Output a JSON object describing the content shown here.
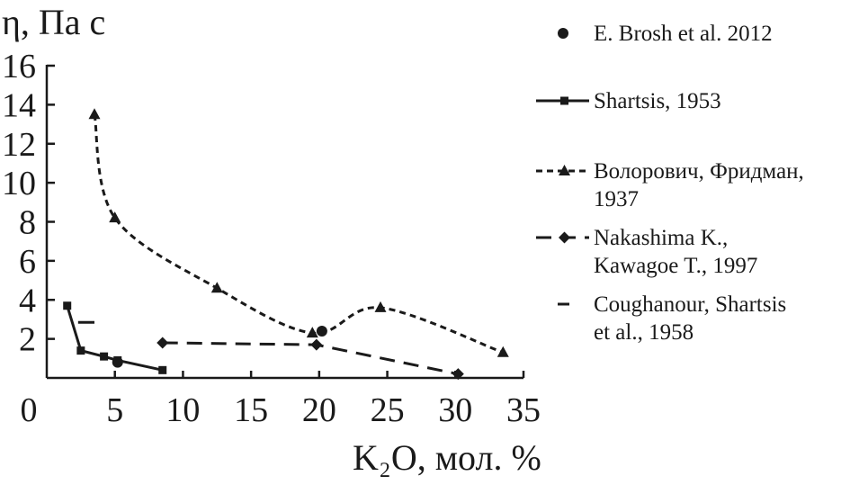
{
  "chart_data": {
    "type": "line",
    "ylabel": "η, Па с",
    "xlabel": "K₂O, мол. %",
    "xlim": [
      0,
      35
    ],
    "ylim": [
      0,
      16
    ],
    "xticks": [
      "0",
      "5",
      "10",
      "15",
      "20",
      "25",
      "30",
      "35"
    ],
    "yticks": [
      "2",
      "4",
      "6",
      "8",
      "10",
      "12",
      "14",
      "16"
    ],
    "grid": false,
    "legend_position": "right",
    "series": [
      {
        "name": "E. Brosh et al. 2012",
        "style": "markers",
        "marker": "circle",
        "x": [
          5.2,
          20.2
        ],
        "y": [
          0.8,
          2.4
        ]
      },
      {
        "name": "Shartsis, 1953",
        "style": "solid",
        "marker": "square",
        "x": [
          1.5,
          2.5,
          4.2,
          5.2,
          8.5
        ],
        "y": [
          3.7,
          1.4,
          1.1,
          0.9,
          0.4
        ]
      },
      {
        "name": "Волорович, Фридман, 1937",
        "style": "short-dash",
        "marker": "triangle",
        "x": [
          3.5,
          5.0,
          12.5,
          19.5,
          24.5,
          33.5
        ],
        "y": [
          13.5,
          8.2,
          4.6,
          2.3,
          3.6,
          1.3
        ]
      },
      {
        "name": "Nakashima K., Kawagoe T., 1997",
        "style": "long-dash",
        "marker": "diamond",
        "x": [
          8.5,
          19.8,
          30.2
        ],
        "y": [
          1.8,
          1.7,
          0.2
        ]
      },
      {
        "name": "Coughanour, Shartsis et al., 1958",
        "style": "dash-segment",
        "marker": "none",
        "x": [
          2.3,
          3.5
        ],
        "y": [
          2.85,
          2.85
        ]
      }
    ],
    "legend": [
      {
        "lines": [
          "E. Brosh et al. 2012"
        ]
      },
      {
        "lines": [
          "Shartsis, 1953"
        ]
      },
      {
        "lines": [
          "Волорович, Фридман,",
          "1937"
        ]
      },
      {
        "lines": [
          "Nakashima K.,",
          "Kawagoe T., 1997"
        ]
      },
      {
        "lines": [
          "Coughanour, Shartsis",
          "et al., 1958"
        ]
      }
    ]
  }
}
